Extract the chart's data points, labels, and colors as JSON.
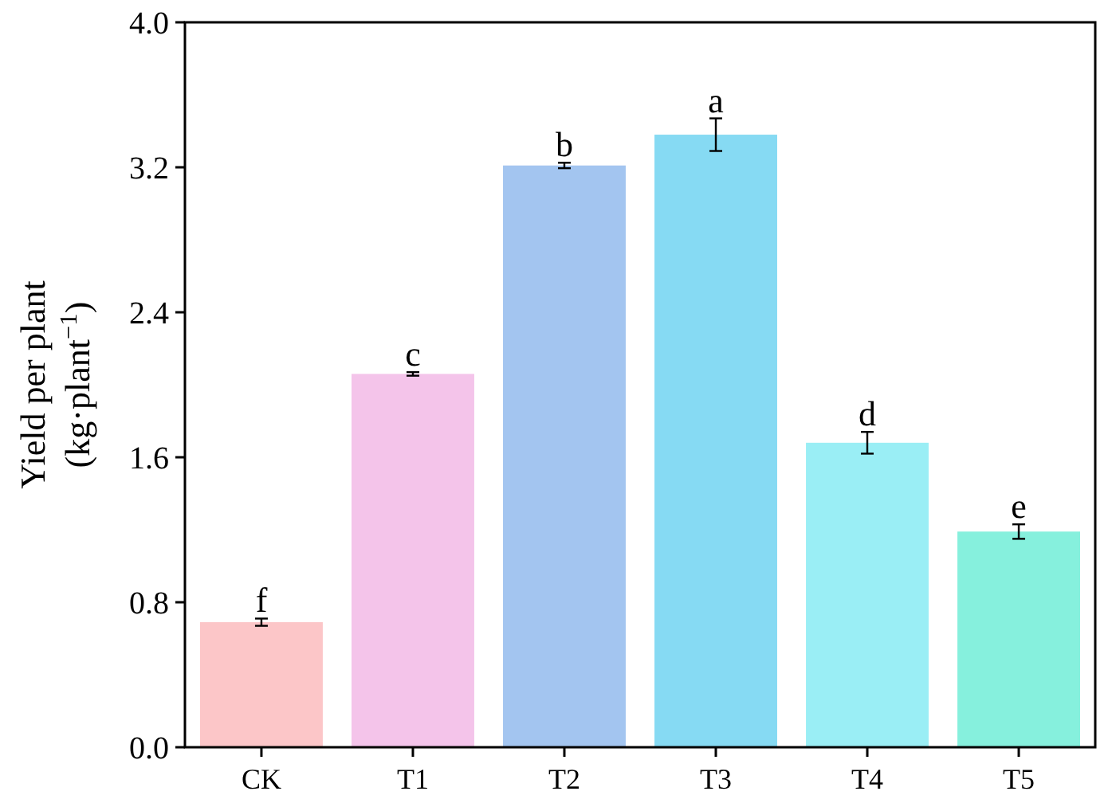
{
  "chart_data": {
    "type": "bar",
    "ylabel": "Yield per plant\n(kg·plant$^{−1}$)",
    "categories": [
      "CK",
      "T1",
      "T2",
      "T3",
      "T4",
      "T5"
    ],
    "values": [
      0.69,
      2.06,
      3.21,
      3.38,
      1.68,
      1.19
    ],
    "errors": [
      0.02,
      0.01,
      0.015,
      0.09,
      0.06,
      0.04
    ],
    "colors": [
      "#fcc6c8",
      "#f4c4ea",
      "#a3c5f0",
      "#86daf3",
      "#9aeef5",
      "#86f0dd"
    ],
    "ylim": [
      0,
      4
    ],
    "yticks": [
      {
        "value": 0,
        "label": "0.0"
      },
      {
        "value": 0.8,
        "label": "0.8"
      },
      {
        "value": 1.6,
        "label": "1.6"
      },
      {
        "value": 2.4,
        "label": "2.4"
      },
      {
        "value": 3.2,
        "label": "3.2"
      },
      {
        "value": 4,
        "label": "4.0"
      }
    ],
    "annotations": [
      {
        "text": "f",
        "x": "CK",
        "y": 0.71
      },
      {
        "text": "c",
        "x": "T1",
        "y": 2.07
      },
      {
        "text": "b",
        "x": "T2",
        "y": 3.225
      },
      {
        "text": "a",
        "x": "T3",
        "y": 3.47
      },
      {
        "text": "d",
        "x": "T4",
        "y": 1.74
      },
      {
        "text": "e",
        "x": "T5",
        "y": 1.23
      }
    ],
    "grid": false
  }
}
